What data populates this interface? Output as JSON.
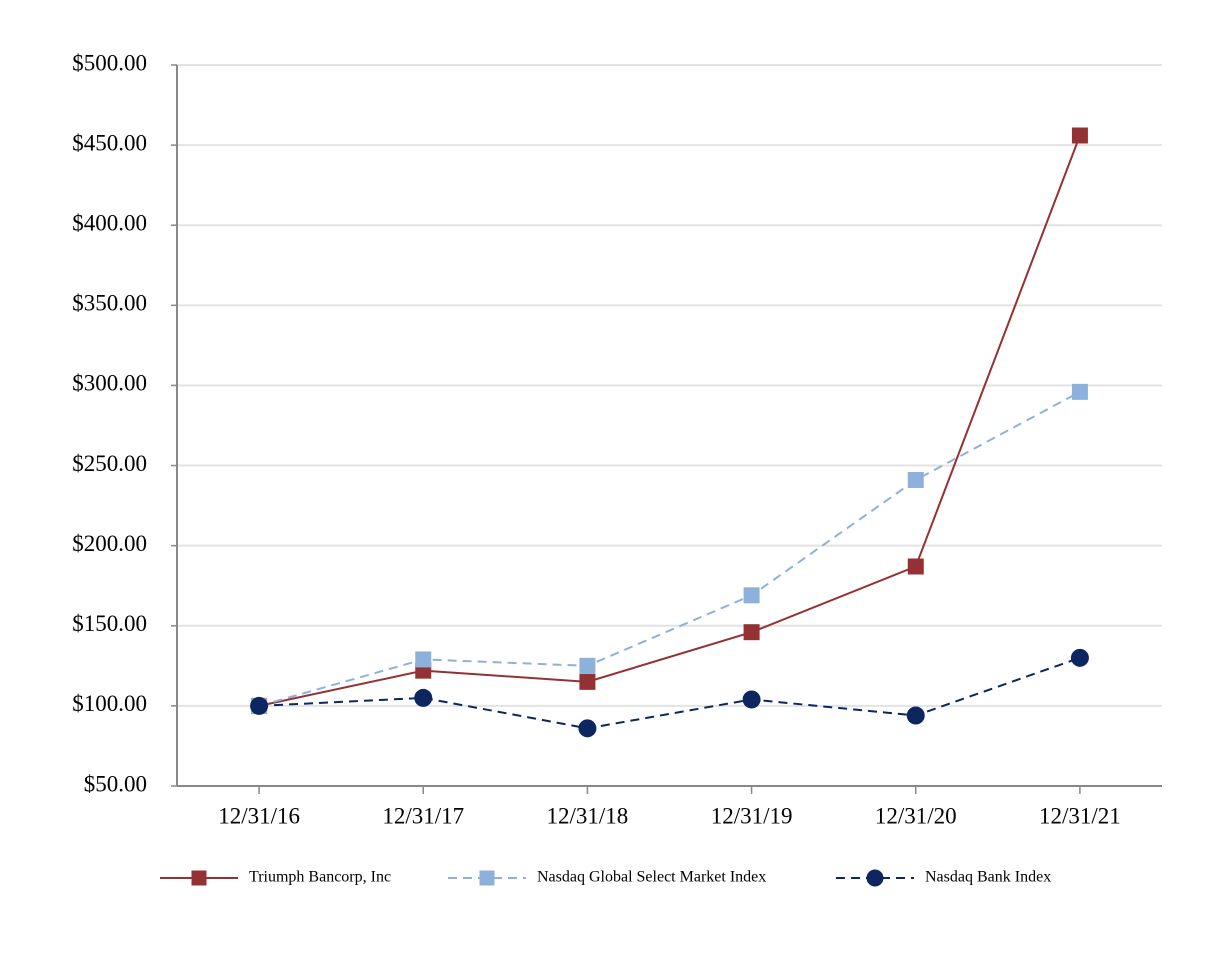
{
  "chart_data": {
    "type": "line",
    "categories": [
      "12/31/16",
      "12/31/17",
      "12/31/18",
      "12/31/19",
      "12/31/20",
      "12/31/21"
    ],
    "series": [
      {
        "name": "Triumph Bancorp, Inc",
        "color": "#943134",
        "dash": "solid",
        "marker": "square",
        "values": [
          100,
          122,
          115,
          146,
          187,
          456
        ]
      },
      {
        "name": "Nasdaq Global Select Market Index",
        "color": "#8eb1dc",
        "dash": "dashed",
        "marker": "square",
        "values": [
          100,
          129,
          125,
          169,
          241,
          296
        ]
      },
      {
        "name": "Nasdaq Bank Index",
        "color": "#0d2660",
        "dash": "dashed",
        "marker": "circle",
        "values": [
          100,
          105,
          86,
          104,
          94,
          130
        ]
      }
    ],
    "ylim": [
      50,
      500
    ],
    "yticks": [
      {
        "value": 50,
        "label": "$50.00"
      },
      {
        "value": 100,
        "label": "$100.00"
      },
      {
        "value": 150,
        "label": "$150.00"
      },
      {
        "value": 200,
        "label": "$200.00"
      },
      {
        "value": 250,
        "label": "$250.00"
      },
      {
        "value": 300,
        "label": "$300.00"
      },
      {
        "value": 350,
        "label": "$350.00"
      },
      {
        "value": 400,
        "label": "$400.00"
      },
      {
        "value": 450,
        "label": "$450.00"
      },
      {
        "value": 500,
        "label": "$500.00"
      }
    ],
    "grid": true,
    "legend": "bottom"
  }
}
